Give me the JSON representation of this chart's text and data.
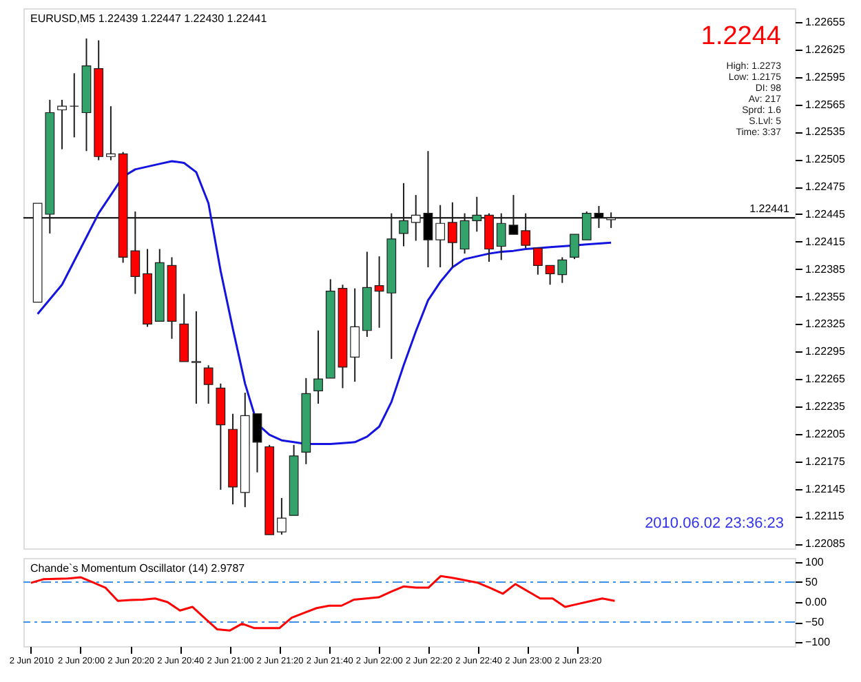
{
  "chart_data": [
    {
      "type": "candlestick",
      "title": "EURUSD,M5  1.22439 1.22447 1.22430 1.22441",
      "categories": [
        null,
        null,
        null,
        null,
        null,
        null,
        null,
        null,
        null,
        null,
        null,
        null,
        null,
        null,
        null,
        null,
        null,
        null,
        null,
        null,
        null,
        null,
        null,
        null,
        null,
        null,
        null,
        null,
        null,
        null,
        null,
        null,
        null,
        null,
        null,
        null,
        null,
        null,
        null,
        null,
        null,
        null,
        null,
        null,
        null,
        null,
        null,
        null
      ],
      "ohlc": [
        [
          1.22349,
          1.22457,
          1.22349,
          1.22457
        ],
        [
          1.22445,
          1.2257,
          1.22424,
          1.22556
        ],
        [
          1.22559,
          1.2257,
          1.22516,
          1.22563
        ],
        [
          1.22563,
          1.22599,
          1.22529,
          1.22563
        ],
        [
          1.22556,
          1.22637,
          1.22514,
          1.22607
        ],
        [
          1.22604,
          1.22635,
          1.22504,
          1.22508
        ],
        [
          1.22508,
          1.22563,
          1.22504,
          1.22511
        ],
        [
          1.22511,
          1.22513,
          1.22392,
          1.22398
        ],
        [
          1.22405,
          1.22448,
          1.22358,
          1.22377
        ],
        [
          1.2238,
          1.22407,
          1.22322,
          1.22325
        ],
        [
          1.22328,
          1.22407,
          1.22328,
          1.22392
        ],
        [
          1.22389,
          1.22398,
          1.22309,
          1.22328
        ],
        [
          1.22325,
          1.22358,
          1.22284,
          1.22284
        ],
        [
          1.22283,
          1.22339,
          1.22238,
          1.22284
        ],
        [
          1.22277,
          1.2228,
          1.22238,
          1.22259
        ],
        [
          1.22255,
          1.2226,
          1.22144,
          1.22215
        ],
        [
          1.2221,
          1.22227,
          1.22128,
          1.22147
        ],
        [
          1.22141,
          1.2225,
          1.22125,
          1.22225
        ],
        [
          1.22227,
          1.22227,
          1.22163,
          1.22196
        ],
        [
          1.22191,
          1.22193,
          1.22095,
          1.22095
        ],
        [
          1.22098,
          1.22135,
          1.22095,
          1.22113
        ],
        [
          1.22116,
          1.22193,
          1.22116,
          1.22181
        ],
        [
          1.22185,
          1.22266,
          1.22172,
          1.22249
        ],
        [
          1.22252,
          1.22318,
          1.22238,
          1.22265
        ],
        [
          1.22266,
          1.22374,
          1.22266,
          1.22361
        ],
        [
          1.22364,
          1.22368,
          1.22255,
          1.22278
        ],
        [
          1.22289,
          1.22364,
          1.22262,
          1.22322
        ],
        [
          1.22318,
          1.22404,
          1.22311,
          1.22365
        ],
        [
          1.22367,
          1.22399,
          1.22321,
          1.22361
        ],
        [
          1.22359,
          1.22446,
          1.22287,
          1.22418
        ],
        [
          1.22424,
          1.22479,
          1.2241,
          1.22438
        ],
        [
          1.22436,
          1.22466,
          1.22416,
          1.22444
        ],
        [
          1.22446,
          1.22514,
          1.22387,
          1.22417
        ],
        [
          1.22417,
          1.22455,
          1.22387,
          1.22435
        ],
        [
          1.22436,
          1.22458,
          1.22387,
          1.22414
        ],
        [
          1.22407,
          1.22446,
          1.22402,
          1.22438
        ],
        [
          1.22438,
          1.22464,
          1.22426,
          1.22444
        ],
        [
          1.22444,
          1.22446,
          1.22393,
          1.22407
        ],
        [
          1.2241,
          1.22446,
          1.22395,
          1.22435
        ],
        [
          1.22433,
          1.22466,
          1.22423,
          1.22423
        ],
        [
          1.22427,
          1.22446,
          1.22408,
          1.22411
        ],
        [
          1.22408,
          1.22408,
          1.22379,
          1.22389
        ],
        [
          1.22389,
          1.22389,
          1.22368,
          1.2238
        ],
        [
          1.22379,
          1.22398,
          1.2237,
          1.22395
        ],
        [
          1.22398,
          1.22423,
          1.22396,
          1.22423
        ],
        [
          1.22417,
          1.22448,
          1.22417,
          1.22446
        ],
        [
          1.22446,
          1.22454,
          1.2243,
          1.22441
        ],
        [
          1.22439,
          1.22447,
          1.2243,
          1.22441
        ]
      ],
      "colors": [
        "#ffffff",
        "#33a36b",
        "#ffffff",
        "#1e1e1e",
        "#33a36b",
        "#ff0000",
        "#ffffff",
        "#ff0000",
        "#ff0000",
        "#ff0000",
        "#33a36b",
        "#ff0000",
        "#ff0000",
        "#ffffff",
        "#ff0000",
        "#ff0000",
        "#ff0000",
        "#ffffff",
        "#000000",
        "#ff0000",
        "#ffffff",
        "#33a36b",
        "#33a36b",
        "#33a36b",
        "#33a36b",
        "#ff0000",
        "#ffffff",
        "#33a36b",
        "#ff0000",
        "#33a36b",
        "#33a36b",
        "#ffffff",
        "#000000",
        "#ffffff",
        "#ff0000",
        "#33a36b",
        "#33a36b",
        "#ff0000",
        "#33a36b",
        "#000000",
        "#ff0000",
        "#ff0000",
        "#ff0000",
        "#33a36b",
        "#33a36b",
        "#33a36b",
        "#000000",
        "#ffffff"
      ],
      "series": [
        {
          "type": "line",
          "color": "#1414e0",
          "values": [
            1.22336,
            1.22352,
            1.22368,
            1.22394,
            1.2242,
            1.22446,
            1.22466,
            1.22486,
            1.22494,
            1.22497,
            1.225,
            1.22503,
            1.22501,
            1.22491,
            1.22457,
            1.22383,
            1.2232,
            1.2226,
            1.22216,
            1.22204,
            1.22198,
            1.22196,
            1.22194,
            1.22194,
            1.22194,
            1.22195,
            1.22196,
            1.22202,
            1.22213,
            1.2224,
            1.2228,
            1.22317,
            1.22351,
            1.22371,
            1.22387,
            1.22396,
            1.22399,
            1.22402,
            1.22404,
            1.22405,
            1.22407,
            1.22408,
            1.22409,
            1.2241,
            1.22411,
            1.22412,
            1.22413,
            1.22414
          ]
        }
      ],
      "ylim": [
        1.2208,
        1.2267
      ],
      "yticks": [
        1.22085,
        1.22115,
        1.22145,
        1.22175,
        1.22205,
        1.22235,
        1.22265,
        1.22295,
        1.22325,
        1.22355,
        1.22385,
        1.22415,
        1.22445,
        1.22475,
        1.22505,
        1.22535,
        1.22565,
        1.22595,
        1.22625,
        1.22655
      ],
      "ref_lines": [
        {
          "axis": "y",
          "value": 1.22441,
          "label": "1.22441",
          "color": "#000000"
        }
      ],
      "annotations": [
        "1.2244",
        "High: 1.2273",
        "Low: 1.2175",
        "DI: 98",
        "Av: 217",
        "Sprd: 1.6",
        "S.Lvl: 5",
        "Time: 3:37",
        "2010.06.02 23:36:23"
      ],
      "tick_labels": "y"
    },
    {
      "type": "line",
      "title": "Chande`s Momentum Oscillator (14) 2.9787",
      "categories": [
        "2 Jun 2010",
        null,
        null,
        null,
        "2 Jun 20:00",
        null,
        null,
        null,
        "2 Jun 20:20",
        null,
        null,
        null,
        "2 Jun 20:40",
        null,
        null,
        null,
        "2 Jun 21:00",
        null,
        null,
        null,
        "2 Jun 21:20",
        null,
        null,
        null,
        "2 Jun 21:40",
        null,
        null,
        null,
        "2 Jun 22:00",
        null,
        null,
        null,
        "2 Jun 22:20",
        null,
        null,
        null,
        "2 Jun 22:40",
        null,
        null,
        null,
        "2 Jun 23:00",
        null,
        null,
        null,
        "2 Jun 23:20",
        null,
        null,
        null
      ],
      "series": [
        {
          "color": "#ff0000",
          "values": [
            48,
            57,
            58,
            59,
            62,
            49,
            36,
            3,
            5,
            6,
            9,
            0,
            -21,
            -12,
            -40,
            -68,
            -71,
            -54,
            -65,
            -65,
            -65,
            -39,
            -27,
            -15,
            -9,
            -9,
            6,
            9,
            12,
            26,
            39,
            36,
            36,
            65,
            60,
            54,
            48,
            35,
            21,
            45,
            27,
            9,
            9,
            -12,
            -5,
            2,
            9,
            3
          ]
        }
      ],
      "ylim": [
        -110,
        110
      ],
      "yticks": [
        100,
        50,
        {
          "value": 0,
          "label": "0.00"
        },
        -50,
        -100
      ],
      "ref_lines": [
        {
          "axis": "y",
          "value": 50,
          "color": "#3d8fe8",
          "line_style": "dashed"
        },
        {
          "axis": "y",
          "value": -50,
          "color": "#3d8fe8",
          "line_style": "dashed"
        }
      ]
    }
  ]
}
